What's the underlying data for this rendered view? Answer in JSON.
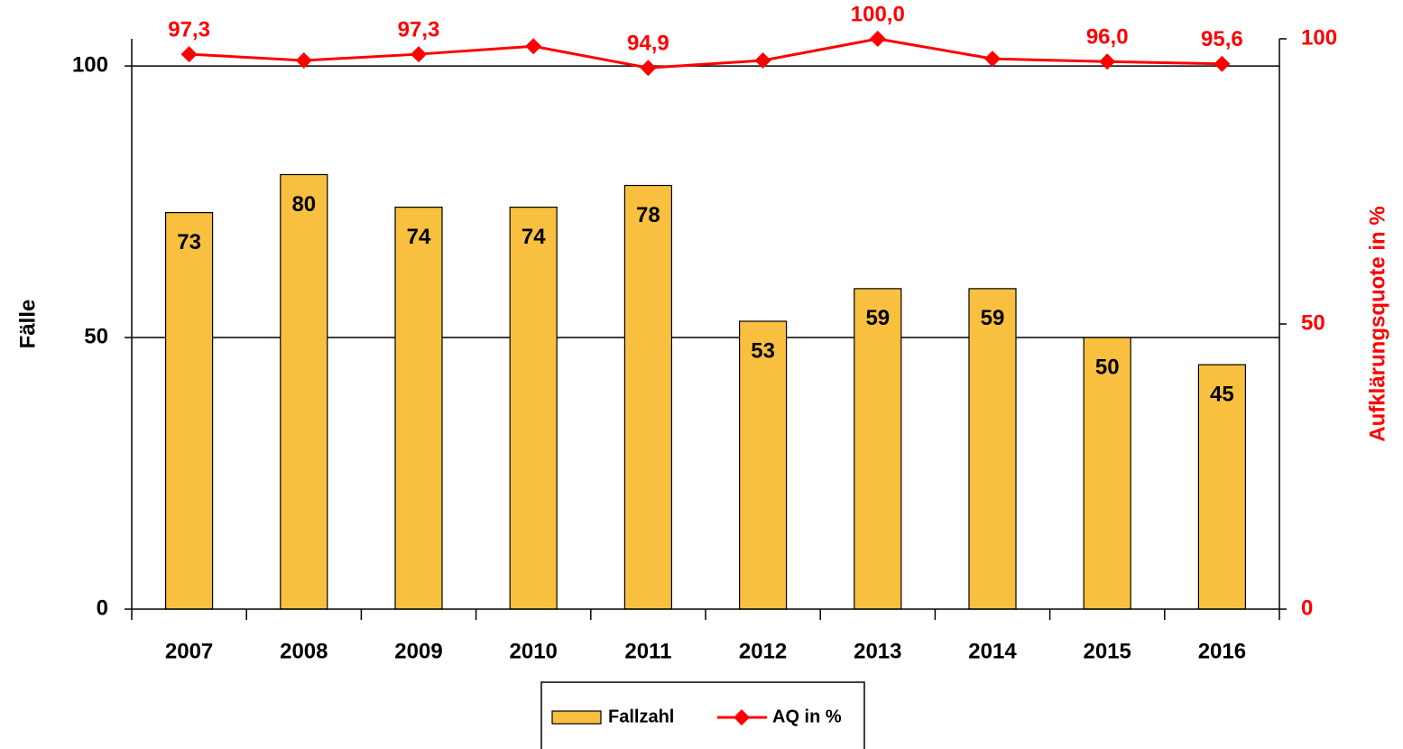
{
  "chart_data": {
    "type": "bar+line",
    "categories": [
      "2007",
      "2008",
      "2009",
      "2010",
      "2011",
      "2012",
      "2013",
      "2014",
      "2015",
      "2016"
    ],
    "series": [
      {
        "name": "Fallzahl",
        "type": "bar",
        "color": "#f9c03f",
        "values": [
          73,
          80,
          74,
          74,
          78,
          53,
          59,
          59,
          50,
          45
        ]
      },
      {
        "name": "AQ in %",
        "type": "line",
        "axis": "y2",
        "color": "#ff0000",
        "values": [
          97.3,
          96.2,
          97.3,
          98.7,
          94.9,
          96.2,
          100.0,
          96.5,
          96.0,
          95.6
        ],
        "value_labels": [
          "97,3",
          null,
          "97,3",
          null,
          "94,9",
          null,
          "100,0",
          null,
          "96,0",
          "95,6"
        ]
      }
    ],
    "ylabel": "Fälle",
    "y2label": "Aufklärungsquote in %",
    "ylim": [
      0,
      105
    ],
    "yticks": [
      0,
      50,
      100
    ],
    "y2lim": [
      0,
      100
    ],
    "y2ticks": [
      0,
      50,
      100
    ],
    "grid": true,
    "legend": "bottom"
  }
}
